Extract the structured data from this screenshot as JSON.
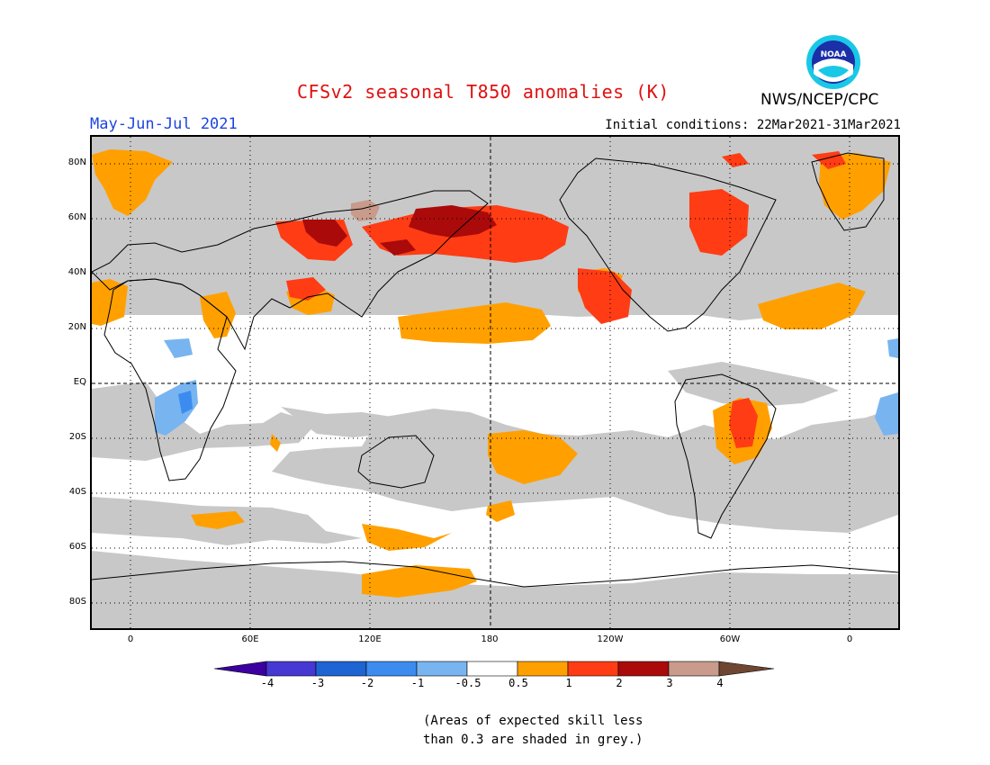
{
  "header": {
    "title": "CFSv2 seasonal T850 anomalies (K)",
    "period": "May-Jun-Jul 2021",
    "initial_conditions": "Initial conditions: 22Mar2021-31Mar2021",
    "agency": "NWS/NCEP/CPC",
    "logo_text": "NOAA"
  },
  "map": {
    "lat_labels": [
      "80N",
      "60N",
      "40N",
      "20N",
      "EQ",
      "20S",
      "40S",
      "60S",
      "80S"
    ],
    "lon_labels": [
      "0",
      "60E",
      "120E",
      "180",
      "120W",
      "60W",
      "0"
    ],
    "colors": {
      "skill_grey": "#c8c8c8",
      "warm_05_1": "#ffa000",
      "warm_1_2": "#ff3c14",
      "warm_2_3": "#aa0a0a",
      "warm_3_4": "#c89b8c",
      "cool_1_05": "#78b4f0",
      "cool_2_1": "#3c8cf0"
    }
  },
  "colorbar": {
    "ticks": [
      "-4",
      "-3",
      "-2",
      "-1",
      "-0.5",
      "0.5",
      "1",
      "2",
      "3",
      "4"
    ],
    "colors": [
      "#3c00a0",
      "#4638d2",
      "#1e64d2",
      "#3c8cf0",
      "#78b4f0",
      "#ffffff",
      "#ffa000",
      "#ff3c14",
      "#aa0a0a",
      "#c89b8c",
      "#6e4632"
    ]
  },
  "footnote": {
    "line1": "(Areas of expected skill less",
    "line2": "than 0.3 are shaded in grey.)"
  }
}
